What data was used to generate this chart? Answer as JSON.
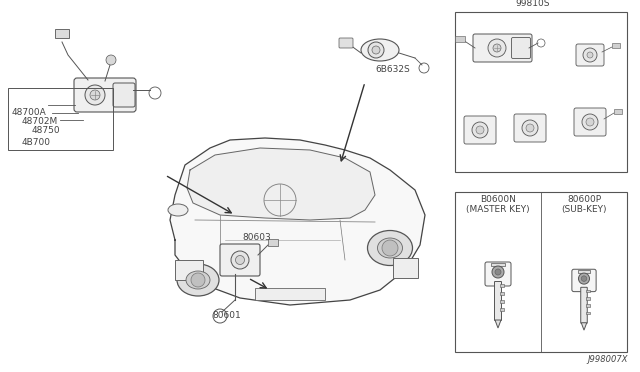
{
  "background_color": "#ffffff",
  "diagram_id": "J998007X",
  "text_color": "#444444",
  "line_color": "#555555",
  "fig_width": 6.4,
  "fig_height": 3.72,
  "dpi": 100,
  "labels": {
    "part_99810S": "99810S",
    "part_6B632S": "6B632S",
    "part_48700A": "48700A",
    "part_48702M": "48702M",
    "part_48750": "48750",
    "part_4B700": "4B700",
    "part_80603": "80603",
    "part_80601": "80601",
    "key_left": "B0600N",
    "key_left2": "(MASTER KEY)",
    "key_right": "80600P",
    "key_right2": "(SUB-KEY)"
  }
}
